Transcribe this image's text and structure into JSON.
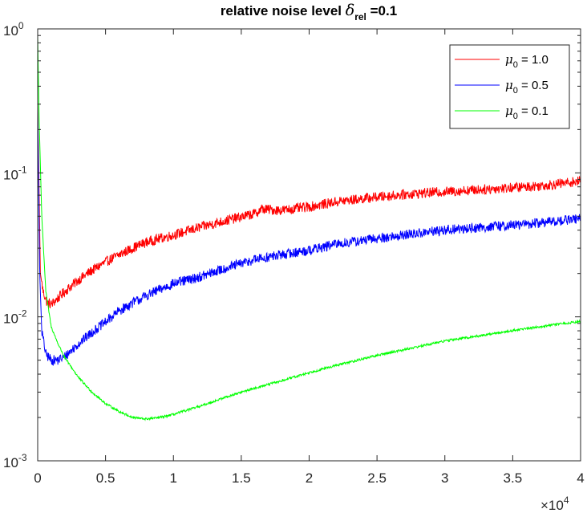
{
  "chart_data": {
    "type": "line",
    "title": {
      "prefix": "relative noise level ",
      "symbol": "δ",
      "subscript": "rel",
      "suffix": " =0.1"
    },
    "xlabel": "",
    "ylabel": "",
    "xlim": [
      0,
      40000
    ],
    "ylim": [
      0.001,
      1
    ],
    "yscale": "log",
    "grid": false,
    "legend_position": "top-right",
    "x_tick_labels": [
      "0",
      "0.5",
      "1",
      "1.5",
      "2",
      "2.5",
      "3",
      "3.5",
      "4"
    ],
    "x_tick_values": [
      0,
      5000,
      10000,
      15000,
      20000,
      25000,
      30000,
      35000,
      40000
    ],
    "x_exponent_label": {
      "base": "×10",
      "exponent": "4"
    },
    "y_tick_values": [
      0.001,
      0.01,
      0.1,
      1
    ],
    "y_tick_labels": [
      {
        "base": "10",
        "exponent": "-3"
      },
      {
        "base": "10",
        "exponent": "-2"
      },
      {
        "base": "10",
        "exponent": "-1"
      },
      {
        "base": "10",
        "exponent": "0"
      }
    ],
    "series": [
      {
        "name": {
          "symbol": "μ",
          "subscript": "0",
          "value": " = 1.0"
        },
        "color": "#ff0000",
        "noise": 0.035,
        "x": [
          0,
          200,
          400,
          700,
          1000,
          1500,
          2000,
          3000,
          4000,
          5000,
          6000,
          7000,
          8000,
          9000,
          10000,
          12000,
          14000,
          16000,
          16500,
          18000,
          20000,
          22000,
          25000,
          28000,
          30000,
          33000,
          36000,
          38000,
          40000
        ],
        "y": [
          0.3,
          0.02,
          0.015,
          0.0125,
          0.0122,
          0.0135,
          0.015,
          0.018,
          0.021,
          0.024,
          0.027,
          0.03,
          0.033,
          0.035,
          0.037,
          0.042,
          0.047,
          0.052,
          0.056,
          0.055,
          0.058,
          0.063,
          0.068,
          0.072,
          0.074,
          0.077,
          0.08,
          0.083,
          0.088
        ]
      },
      {
        "name": {
          "symbol": "μ",
          "subscript": "0",
          "value": " = 0.5"
        },
        "color": "#0000ff",
        "noise": 0.035,
        "x": [
          0,
          150,
          300,
          600,
          1000,
          1500,
          2000,
          3000,
          4000,
          5000,
          6000,
          7000,
          8000,
          9000,
          10000,
          12000,
          14000,
          16000,
          18000,
          20000,
          22000,
          25000,
          28000,
          30000,
          33000,
          36000,
          38000,
          40000
        ],
        "y": [
          0.3,
          0.02,
          0.008,
          0.0055,
          0.005,
          0.005,
          0.0053,
          0.0065,
          0.0078,
          0.0092,
          0.011,
          0.0125,
          0.014,
          0.0155,
          0.017,
          0.019,
          0.022,
          0.025,
          0.027,
          0.029,
          0.032,
          0.035,
          0.038,
          0.04,
          0.042,
          0.044,
          0.046,
          0.048
        ]
      },
      {
        "name": {
          "symbol": "μ",
          "subscript": "0",
          "value": " = 0.1"
        },
        "color": "#00ff00",
        "noise": 0.008,
        "x": [
          0,
          100,
          300,
          600,
          1000,
          1500,
          2000,
          3000,
          4000,
          5000,
          6000,
          7000,
          8000,
          9000,
          10000,
          12000,
          14000,
          16000,
          18000,
          20000,
          22000,
          25000,
          28000,
          30000,
          33000,
          36000,
          38000,
          40000
        ],
        "y": [
          0.9,
          0.25,
          0.05,
          0.015,
          0.0085,
          0.0065,
          0.0052,
          0.0038,
          0.003,
          0.0025,
          0.0022,
          0.002,
          0.00195,
          0.002,
          0.0021,
          0.0024,
          0.0028,
          0.0032,
          0.0036,
          0.0041,
          0.0046,
          0.0054,
          0.0062,
          0.0068,
          0.0075,
          0.0083,
          0.0088,
          0.0093
        ]
      }
    ]
  }
}
